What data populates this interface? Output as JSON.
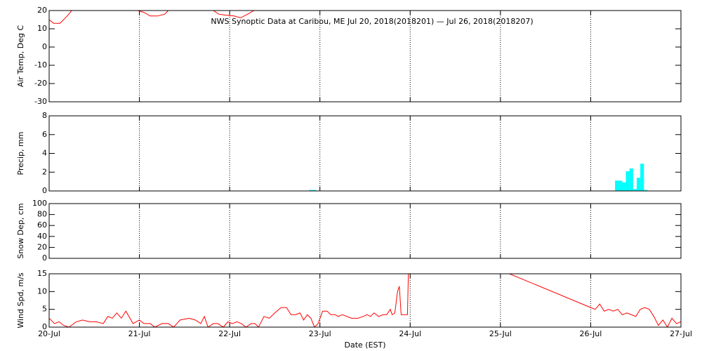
{
  "chart_data": [
    {
      "type": "line",
      "title": "NWS Synoptic Data at Caribou, ME   Jul 20, 2018(2018201) — Jul 26, 2018(2018207)",
      "ylabel": "Air Temp, Deg C",
      "xlim": [
        0,
        7
      ],
      "ylim": [
        -30,
        20
      ],
      "yticks": [
        -30,
        -20,
        -10,
        0,
        10,
        20
      ],
      "x": [
        0,
        0.05,
        0.12,
        0.2,
        0.25,
        0.6,
        0.98,
        1.05,
        1.12,
        1.2,
        1.28,
        1.32,
        1.6,
        1.82,
        1.88,
        1.95,
        2.05,
        2.12,
        2.2,
        2.27
      ],
      "series": [
        {
          "name": "Air Temp",
          "color": "#ff0000",
          "values": [
            15,
            13,
            13,
            17,
            20,
            null,
            20,
            19,
            17,
            17,
            18,
            20,
            null,
            20,
            18,
            17.5,
            17,
            16,
            18,
            20
          ]
        }
      ]
    },
    {
      "type": "bar",
      "ylabel": "Precip, mm",
      "xlim": [
        0,
        7
      ],
      "ylim": [
        0,
        8
      ],
      "yticks": [
        0,
        2,
        4,
        6,
        8
      ],
      "color": "#00ffff",
      "x": [
        2.9,
        2.94,
        6.29,
        6.33,
        6.37,
        6.41,
        6.45,
        6.49,
        6.53,
        6.57,
        6.61
      ],
      "values": [
        0.1,
        0.1,
        1.1,
        1.1,
        0.9,
        2.1,
        2.4,
        0.2,
        1.4,
        2.9,
        0.1
      ]
    },
    {
      "type": "line",
      "ylabel": "Snow Dep, cm",
      "xlim": [
        0,
        7
      ],
      "ylim": [
        0,
        100
      ],
      "yticks": [
        0,
        20,
        40,
        60,
        80,
        100
      ]
    },
    {
      "type": "line",
      "ylabel": "Wind Spd, m/s",
      "xlabel": "Date (EST)",
      "xlim": [
        0,
        7
      ],
      "ylim": [
        0,
        15
      ],
      "yticks": [
        0,
        5,
        10,
        15
      ],
      "xticks": [
        {
          "value": 0,
          "label": "20-Jul"
        },
        {
          "value": 1,
          "label": "21-Jul"
        },
        {
          "value": 2,
          "label": "22-Jul"
        },
        {
          "value": 3,
          "label": "23-Jul"
        },
        {
          "value": 4,
          "label": "24-Jul"
        },
        {
          "value": 5,
          "label": "25-Jul"
        },
        {
          "value": 6,
          "label": "26-Jul"
        },
        {
          "value": 7,
          "label": "27-Jul"
        }
      ],
      "x": [
        0,
        0.06,
        0.11,
        0.16,
        0.22,
        0.3,
        0.37,
        0.45,
        0.52,
        0.6,
        0.65,
        0.7,
        0.75,
        0.8,
        0.85,
        0.93,
        1.0,
        1.05,
        1.12,
        1.17,
        1.25,
        1.32,
        1.38,
        1.45,
        1.55,
        1.62,
        1.68,
        1.72,
        1.76,
        1.82,
        1.87,
        1.93,
        1.98,
        2.03,
        2.08,
        2.13,
        2.18,
        2.24,
        2.28,
        2.32,
        2.38,
        2.44,
        2.5,
        2.57,
        2.63,
        2.68,
        2.73,
        2.78,
        2.82,
        2.86,
        2.9,
        2.94,
        2.98,
        3.03,
        3.08,
        3.12,
        3.17,
        3.2,
        3.25,
        3.35,
        3.42,
        3.48,
        3.52,
        3.56,
        3.6,
        3.65,
        3.7,
        3.74,
        3.78,
        3.8,
        3.83,
        3.85,
        3.86,
        3.88,
        3.9,
        3.97,
        3.98,
        4.5,
        5.1,
        6.0,
        6.05,
        6.1,
        6.15,
        6.2,
        6.25,
        6.3,
        6.35,
        6.4,
        6.45,
        6.5,
        6.55,
        6.6,
        6.65,
        6.7,
        6.75,
        6.8,
        6.85,
        6.9,
        6.95,
        7.0
      ],
      "series": [
        {
          "name": "Wind Spd",
          "color": "#ff0000",
          "values": [
            2.5,
            1,
            1.5,
            0.5,
            0,
            1.5,
            2,
            1.5,
            1.5,
            1,
            3,
            2.5,
            4,
            2.5,
            4.5,
            1,
            2,
            1,
            1,
            0,
            1,
            1,
            0,
            2,
            2.5,
            2,
            1,
            3,
            0,
            1,
            1,
            0,
            1.5,
            1,
            1.5,
            1,
            0,
            1,
            1,
            0,
            3,
            2.5,
            4,
            5.5,
            5.5,
            3.5,
            3.5,
            4,
            2,
            3.5,
            2.5,
            0,
            1,
            4.5,
            4.5,
            3.5,
            3.5,
            3,
            3.5,
            2.5,
            2.5,
            3,
            3.5,
            3,
            4,
            3,
            3.5,
            3.5,
            5,
            3.5,
            4,
            8,
            10,
            11.5,
            3.5,
            3.5,
            15,
            null,
            15,
            5.5,
            5,
            6.5,
            4.5,
            5,
            4.5,
            5,
            3.5,
            4,
            3.5,
            3,
            5,
            5.5,
            5,
            3,
            0.5,
            2,
            0,
            2.5,
            1,
            1.5
          ]
        }
      ]
    }
  ]
}
